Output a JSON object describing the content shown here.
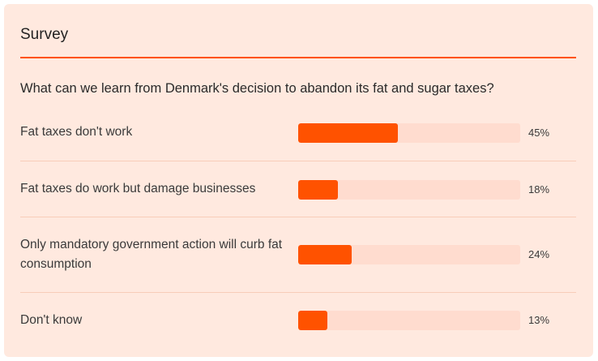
{
  "survey": {
    "title": "Survey",
    "question": "What can we learn from Denmark's decision to abandon its fat and sugar taxes?",
    "options": [
      {
        "label": "Fat taxes don't work",
        "percent_text": "45%",
        "value": 45
      },
      {
        "label": "Fat taxes do work but damage businesses",
        "percent_text": "18%",
        "value": 18
      },
      {
        "label": "Only mandatory government action will curb fat consumption",
        "percent_text": "24%",
        "value": 24
      },
      {
        "label": "Don't know",
        "percent_text": "13%",
        "value": 13
      }
    ],
    "colors": {
      "accent": "#ff5200",
      "track": "#ffdccf",
      "card_background": "#ffe9df"
    }
  }
}
